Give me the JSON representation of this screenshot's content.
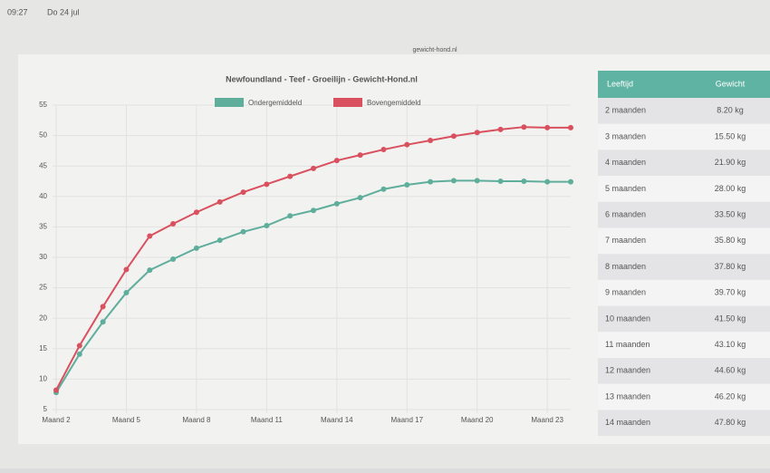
{
  "status": {
    "time": "09:27",
    "date": "Do 24 jul"
  },
  "url": "gewicht-hond.nl",
  "chart_data": {
    "type": "line",
    "title": "Newfoundland - Teef - Groeilijn - Gewicht-Hond.nl",
    "categories": [
      "Maand 2",
      null,
      null,
      "Maand 5",
      null,
      null,
      "Maand 8",
      null,
      null,
      "Maand 11",
      null,
      null,
      "Maand 14",
      null,
      null,
      "Maand 17",
      null,
      null,
      "Maand 20",
      null,
      null,
      "Maand 23",
      null
    ],
    "series": [
      {
        "name": "Ondergemiddeld",
        "color": "#5fae9c",
        "values": [
          7.8,
          14.1,
          19.4,
          24.2,
          27.9,
          29.7,
          31.5,
          32.8,
          34.2,
          35.2,
          36.8,
          37.7,
          38.8,
          39.8,
          41.2,
          41.9,
          42.4,
          42.6,
          42.6,
          42.5,
          42.5,
          42.4,
          42.4
        ]
      },
      {
        "name": "Bovengemiddeld",
        "color": "#d9505e",
        "values": [
          8.2,
          15.5,
          21.9,
          28,
          33.5,
          35.5,
          37.4,
          39.1,
          40.7,
          42,
          43.3,
          44.6,
          45.9,
          46.8,
          47.7,
          48.5,
          49.2,
          49.9,
          50.5,
          51,
          51.4,
          51.3,
          51.3
        ]
      }
    ],
    "ylim": [
      5,
      55
    ],
    "yticks": [
      5,
      10,
      15,
      20,
      25,
      30,
      35,
      40,
      45,
      50,
      55
    ],
    "grid": true
  },
  "table": {
    "header": [
      "Leeftijd",
      "Gewicht"
    ],
    "rows": [
      [
        "2 maanden",
        "8.20 kg"
      ],
      [
        "3 maanden",
        "15.50 kg"
      ],
      [
        "4 maanden",
        "21.90 kg"
      ],
      [
        "5 maanden",
        "28.00 kg"
      ],
      [
        "6 maanden",
        "33.50 kg"
      ],
      [
        "7 maanden",
        "35.80 kg"
      ],
      [
        "8 maanden",
        "37.80 kg"
      ],
      [
        "9 maanden",
        "39.70 kg"
      ],
      [
        "10 maanden",
        "41.50 kg"
      ],
      [
        "11 maanden",
        "43.10 kg"
      ],
      [
        "12 maanden",
        "44.60 kg"
      ],
      [
        "13 maanden",
        "46.20 kg"
      ],
      [
        "14 maanden",
        "47.80 kg"
      ]
    ]
  }
}
